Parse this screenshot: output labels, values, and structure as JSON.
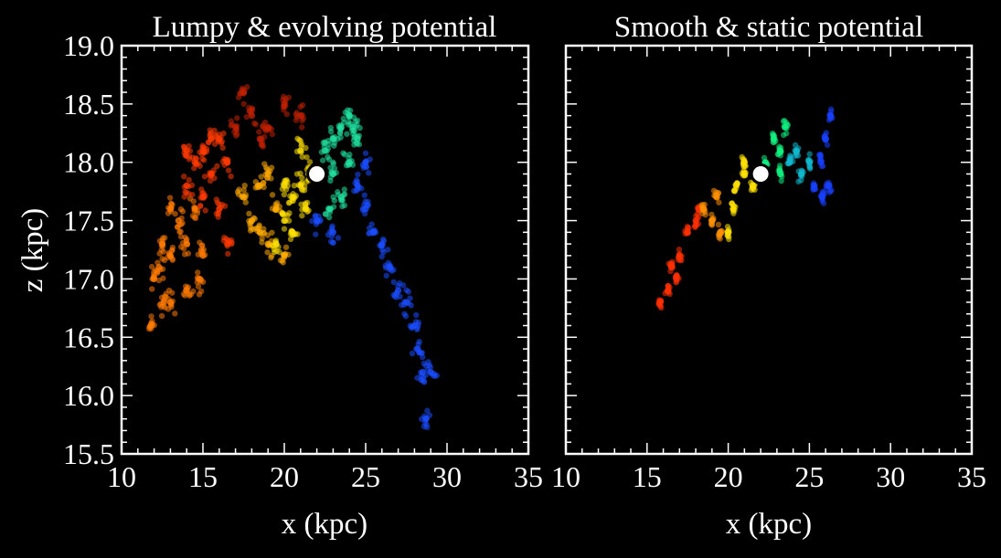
{
  "chart_data": [
    {
      "type": "scatter",
      "title": "Lumpy & evolving potential",
      "xlabel": "x (kpc)",
      "ylabel": "z (kpc)",
      "xlim": [
        10,
        35
      ],
      "ylim": [
        15.5,
        19.0
      ],
      "xticks": [
        "10",
        "15",
        "20",
        "25",
        "30",
        "35"
      ],
      "yticks": [
        "15.5",
        "16.0",
        "16.5",
        "17.0",
        "17.5",
        "18.0",
        "18.5",
        "19.0"
      ],
      "marker": {
        "x": 22,
        "z": 17.9,
        "color": "#ffffff"
      },
      "series": [
        {
          "name": "orange",
          "color": "#ff7a00",
          "points": [
            [
              11.8,
              16.6
            ],
            [
              12,
              17.0
            ],
            [
              12.5,
              17.3
            ],
            [
              13,
              17.2
            ],
            [
              13,
              16.8
            ],
            [
              13.5,
              17.5
            ],
            [
              14,
              17.3
            ],
            [
              14,
              16.9
            ],
            [
              14.5,
              17.6
            ],
            [
              15,
              17.2
            ],
            [
              13,
              17.6
            ],
            [
              12.3,
              17.1
            ],
            [
              12.6,
              16.8
            ],
            [
              14.8,
              17.0
            ]
          ]
        },
        {
          "name": "red",
          "color": "#ff3a00",
          "points": [
            [
              14,
              17.8
            ],
            [
              14.5,
              18.0
            ],
            [
              15,
              18.1
            ],
            [
              15.5,
              18.2
            ],
            [
              16,
              18.2
            ],
            [
              16.5,
              18.0
            ],
            [
              15,
              17.7
            ],
            [
              16,
              17.6
            ],
            [
              14,
              18.1
            ],
            [
              16.5,
              17.3
            ],
            [
              15.5,
              17.9
            ]
          ]
        },
        {
          "name": "dark-red",
          "color": "#c02000",
          "points": [
            [
              17.5,
              18.6
            ],
            [
              18,
              18.4
            ],
            [
              19,
              18.3
            ],
            [
              20,
              18.5
            ],
            [
              21,
              18.4
            ],
            [
              18.5,
              18.2
            ],
            [
              17,
              18.3
            ]
          ]
        },
        {
          "name": "amber",
          "color": "#ffaa00",
          "points": [
            [
              17.5,
              17.7
            ],
            [
              18,
              17.5
            ],
            [
              18.5,
              17.8
            ],
            [
              19,
              17.3
            ],
            [
              19.5,
              17.6
            ],
            [
              20,
              17.2
            ],
            [
              19,
              17.9
            ],
            [
              18.5,
              17.4
            ]
          ]
        },
        {
          "name": "yellow",
          "color": "#ffe000",
          "points": [
            [
              20,
              17.5
            ],
            [
              20.5,
              17.7
            ],
            [
              21,
              17.8
            ],
            [
              21.5,
              17.9
            ],
            [
              20.5,
              17.4
            ],
            [
              21,
              18.1
            ],
            [
              20,
              17.8
            ],
            [
              19.5,
              17.3
            ],
            [
              21.3,
              17.6
            ]
          ]
        },
        {
          "name": "green-cyan",
          "color": "#20e0a0",
          "points": [
            [
              22.5,
              18.1
            ],
            [
              23,
              18.2
            ],
            [
              23.5,
              18.3
            ],
            [
              24,
              18.4
            ],
            [
              24.5,
              18.2
            ],
            [
              23,
              17.9
            ],
            [
              24,
              18.0
            ],
            [
              23.5,
              17.7
            ],
            [
              22.8,
              17.6
            ],
            [
              24.2,
              18.3
            ]
          ]
        },
        {
          "name": "blue",
          "color": "#1a4cff",
          "points": [
            [
              24.5,
              17.8
            ],
            [
              25,
              17.6
            ],
            [
              25.5,
              17.4
            ],
            [
              26,
              17.3
            ],
            [
              26.5,
              17.1
            ],
            [
              27,
              16.9
            ],
            [
              27.5,
              16.8
            ],
            [
              28,
              16.6
            ],
            [
              28.2,
              16.4
            ],
            [
              28.5,
              16.2
            ],
            [
              29,
              16.2
            ],
            [
              28.7,
              15.8
            ],
            [
              23,
              17.4
            ],
            [
              22,
              17.5
            ],
            [
              25,
              18.0
            ]
          ]
        }
      ]
    },
    {
      "type": "scatter",
      "title": "Smooth & static potential",
      "xlabel": "x (kpc)",
      "ylabel": "",
      "xlim": [
        10,
        35
      ],
      "ylim": [
        15.5,
        19.0
      ],
      "xticks": [
        "10",
        "15",
        "20",
        "25",
        "30",
        "35"
      ],
      "yticks": [],
      "marker": {
        "x": 22,
        "z": 17.9,
        "color": "#ffffff"
      },
      "series": [
        {
          "name": "red",
          "color": "#ff3000",
          "points": [
            [
              15.8,
              16.8
            ],
            [
              16.3,
              16.9
            ],
            [
              16.5,
              17.1
            ],
            [
              17,
              17.2
            ],
            [
              17.5,
              17.4
            ],
            [
              18,
              17.5
            ],
            [
              18.2,
              17.6
            ],
            [
              16.8,
              17.0
            ]
          ]
        },
        {
          "name": "orange",
          "color": "#ff9000",
          "points": [
            [
              18.5,
              17.6
            ],
            [
              19,
              17.5
            ],
            [
              19.5,
              17.4
            ],
            [
              19.3,
              17.7
            ]
          ]
        },
        {
          "name": "yellow",
          "color": "#ffe000",
          "points": [
            [
              20,
              17.4
            ],
            [
              20.3,
              17.6
            ],
            [
              20.5,
              17.8
            ],
            [
              21,
              17.9
            ],
            [
              21.5,
              17.8
            ],
            [
              21,
              18.0
            ]
          ]
        },
        {
          "name": "green",
          "color": "#10f080",
          "points": [
            [
              22.3,
              18.0
            ],
            [
              22.8,
              18.2
            ],
            [
              23.2,
              18.1
            ],
            [
              23.5,
              18.3
            ],
            [
              23.2,
              17.9
            ]
          ]
        },
        {
          "name": "cyan",
          "color": "#10b8d0",
          "points": [
            [
              23.8,
              18.0
            ],
            [
              24.2,
              18.1
            ],
            [
              24.5,
              17.9
            ],
            [
              25,
              18.0
            ]
          ]
        },
        {
          "name": "blue",
          "color": "#1840ff",
          "points": [
            [
              25.3,
              17.8
            ],
            [
              25.7,
              18.0
            ],
            [
              26,
              18.2
            ],
            [
              26.2,
              17.8
            ],
            [
              26.3,
              18.4
            ],
            [
              25.8,
              17.7
            ]
          ]
        }
      ]
    }
  ]
}
